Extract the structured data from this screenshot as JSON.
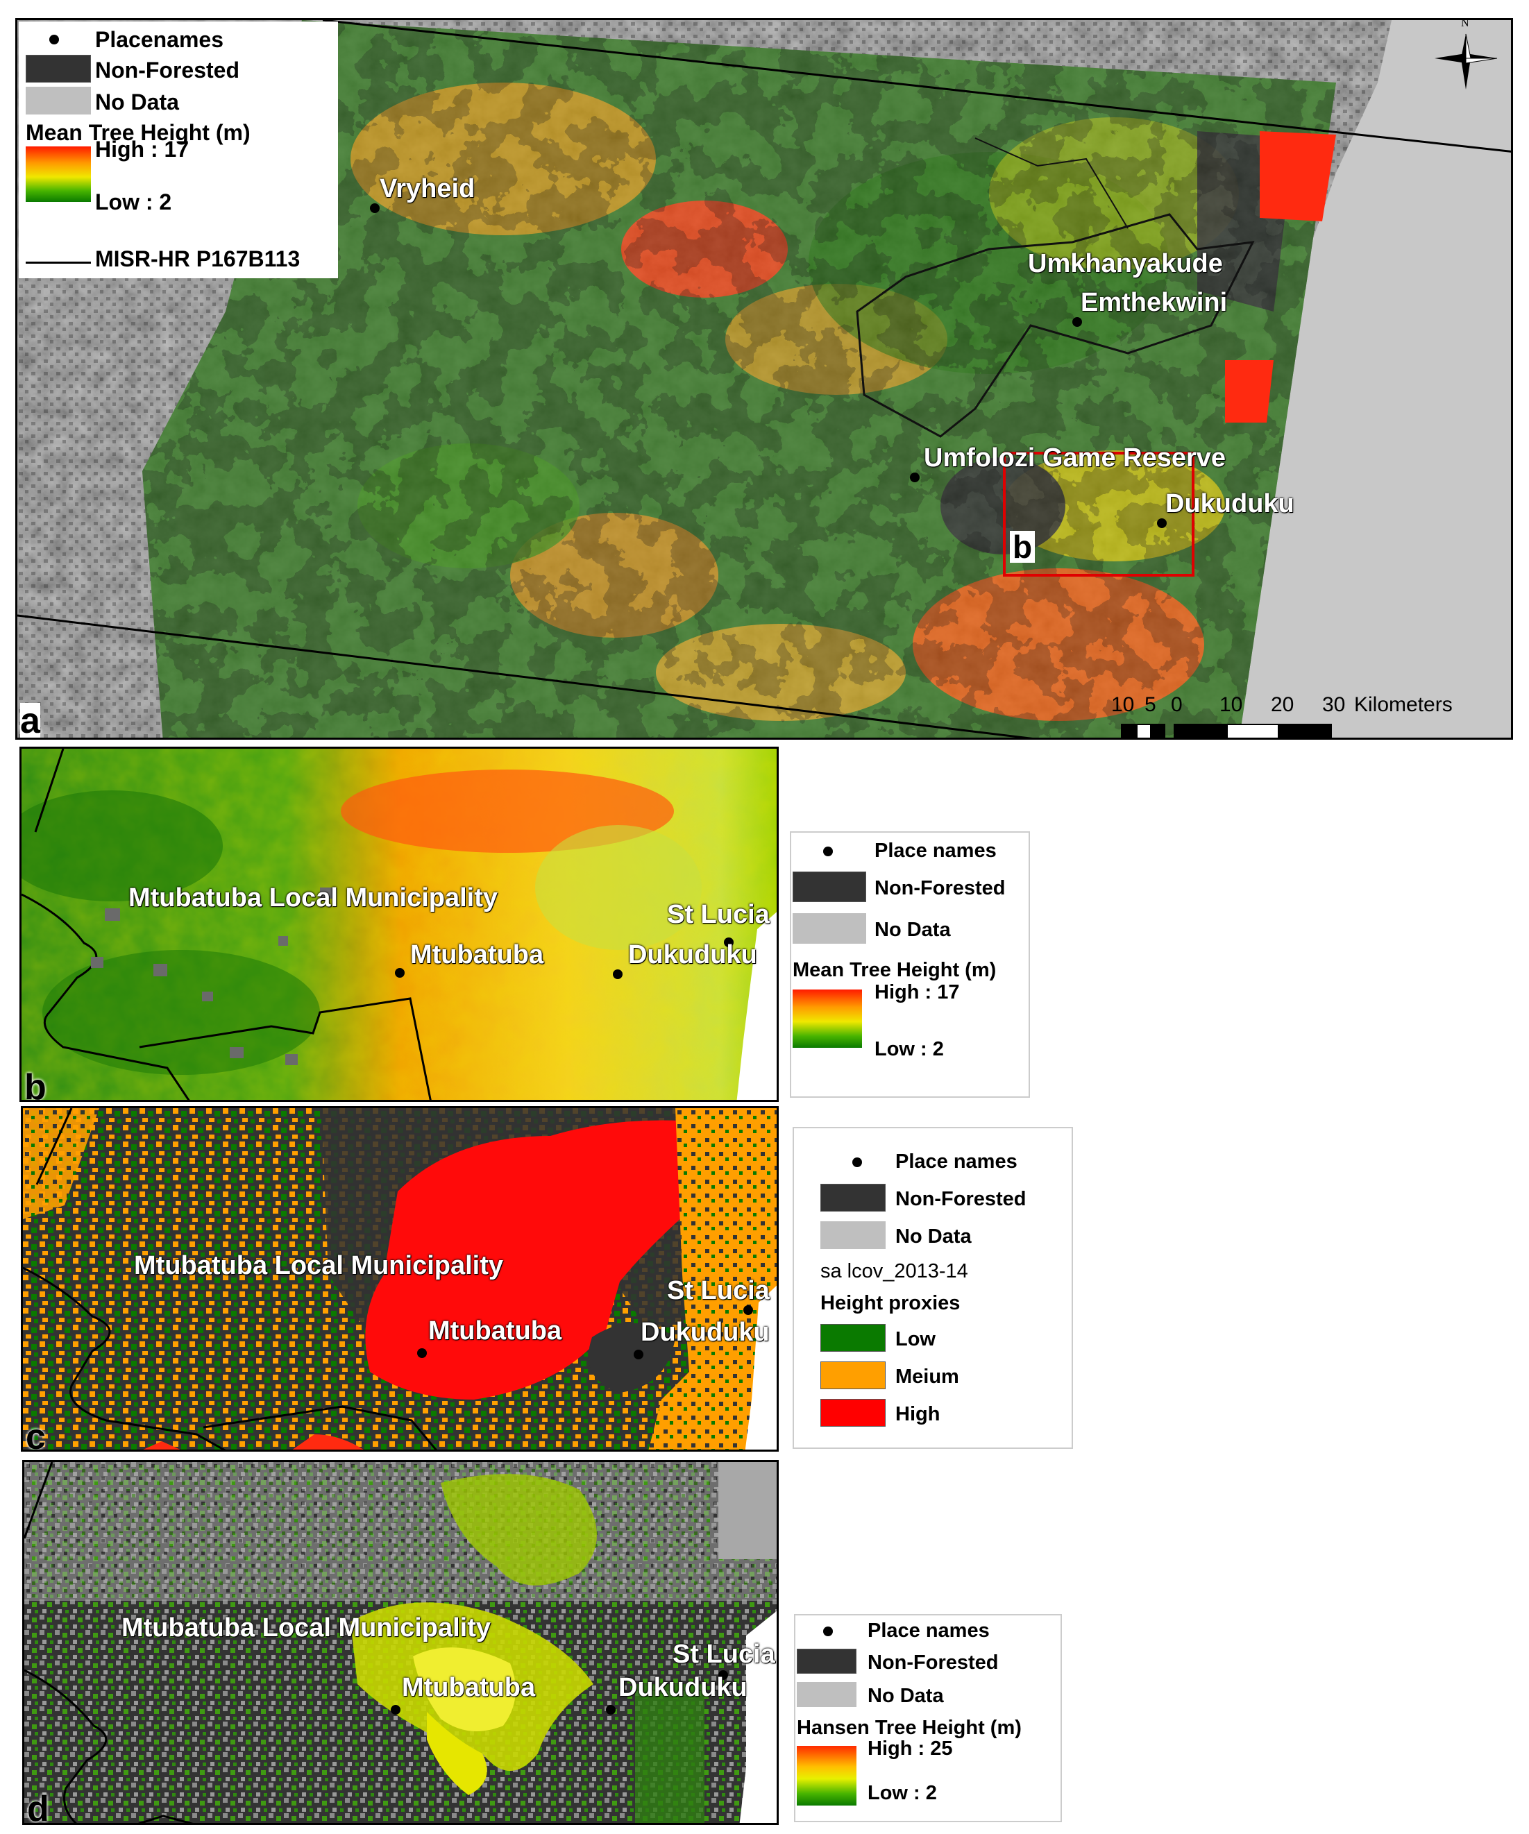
{
  "panel_a": {
    "letter": "a",
    "legend": {
      "placenames": "Placenames",
      "non_forested": "Non-Forested",
      "no_data": "No Data",
      "ramp_title": "Mean Tree Height (m)",
      "high": "High : 17",
      "low": "Low : 2",
      "line_label": "MISR-HR P167B113"
    },
    "places": [
      "Vryheid",
      "Umkhanyakude",
      "Emthekwini",
      "Umfolozi Game Reserve",
      "Dukuduku"
    ],
    "inset_marker": "b",
    "scale": {
      "ticks": [
        "10",
        "5",
        "0",
        "10",
        "20",
        "30"
      ],
      "unit": "Kilometers"
    },
    "north": "N"
  },
  "panel_b": {
    "letter": "b",
    "labels": [
      "Mtubatuba Local Municipality",
      "St Lucia",
      "Mtubatuba",
      "Dukuduku"
    ],
    "legend": {
      "placenames": "Place names",
      "non_forested": "Non-Forested",
      "no_data": "No Data",
      "ramp_title": "Mean Tree Height (m)",
      "high": "High : 17",
      "low": "Low : 2"
    }
  },
  "panel_c": {
    "letter": "c",
    "labels": [
      "Mtubatuba Local Municipality",
      "St Lucia",
      "Mtubatuba",
      "Dukuduku"
    ],
    "legend": {
      "placenames": "Place names",
      "non_forested": "Non-Forested",
      "no_data": "No Data",
      "dataset": "sa lcov_2013-14",
      "title": "Height proxies",
      "low": "Low",
      "medium": "Meium",
      "high": "High"
    }
  },
  "panel_d": {
    "letter": "d",
    "labels": [
      "Mtubatuba Local Municipality",
      "St Lucia",
      "Mtubatuba",
      "Dukuduku"
    ],
    "legend": {
      "placenames": "Place names",
      "non_forested": "Non-Forested",
      "no_data": "No Data",
      "ramp_title": "Hansen Tree Height (m)",
      "high": "High : 25",
      "low": "Low : 2"
    }
  },
  "colors": {
    "non_forested": "#333333",
    "no_data": "#bfbfbf",
    "low": "#0a7a00",
    "medium": "#ff9f00",
    "high": "#ff0000",
    "inset_box": "#e00000"
  }
}
